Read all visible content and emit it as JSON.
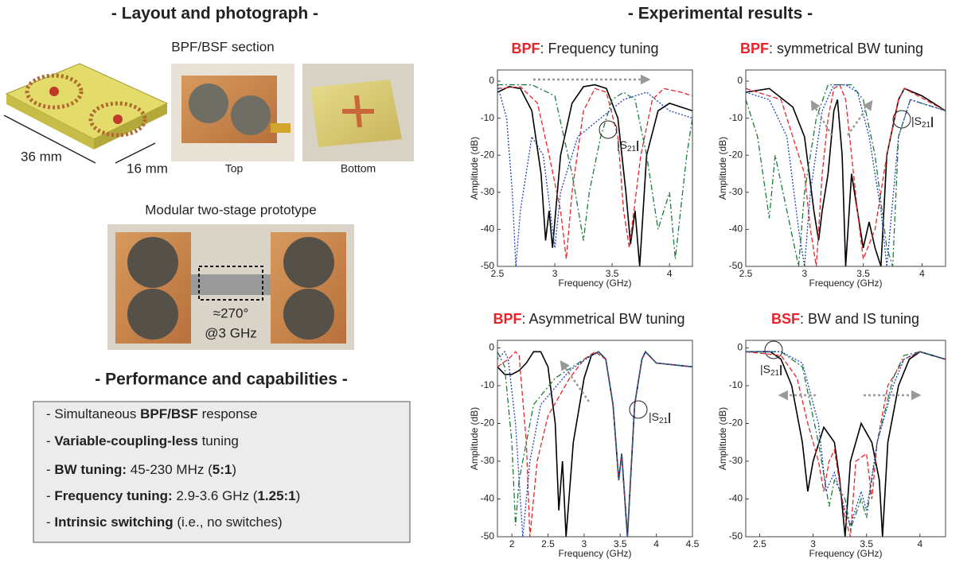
{
  "left": {
    "heading": "- Layout and photograph -",
    "section_label": "BPF/BSF section",
    "dim_length": "36 mm",
    "dim_width": "16 mm",
    "top_label": "Top",
    "bottom_label": "Bottom",
    "prototype_label": "Modular two-stage prototype",
    "phase_label": "≈270°",
    "freq_label": "@3 GHz"
  },
  "performance": {
    "heading": "- Performance and capabilities -",
    "items": [
      [
        {
          "t": "- Simultaneous ",
          "b": false
        },
        {
          "t": "BPF/BSF",
          "b": true
        },
        {
          "t": " response",
          "b": false
        }
      ],
      [
        {
          "t": "- ",
          "b": false
        },
        {
          "t": "Variable-coupling-less",
          "b": true
        },
        {
          "t": " tuning",
          "b": false
        }
      ],
      [
        {
          "t": "- ",
          "b": false
        },
        {
          "t": "BW tuning:",
          "b": true
        },
        {
          "t": " 45-230 MHz (",
          "b": false
        },
        {
          "t": "5:1",
          "b": true
        },
        {
          "t": ")",
          "b": false
        }
      ],
      [
        {
          "t": "- ",
          "b": false
        },
        {
          "t": "Frequency tuning:",
          "b": true
        },
        {
          "t": " 2.9-3.6 GHz (",
          "b": false
        },
        {
          "t": "1.25:1",
          "b": true
        },
        {
          "t": ")",
          "b": false
        }
      ],
      [
        {
          "t": "- ",
          "b": false
        },
        {
          "t": "Intrinsic switching",
          "b": true
        },
        {
          "t": " (i.e., no switches)",
          "b": false
        }
      ]
    ]
  },
  "results_heading": "- Experimental results -",
  "s21": {
    "pre": "|S",
    "sub": "21",
    "post": "|"
  },
  "chart_data": [
    {
      "type": "line",
      "title_tag": "BPF",
      "title": ": Frequency tuning",
      "tag_color": "#e8242a",
      "xlabel": "Frequency (GHz)",
      "ylabel": "Amplitude (dB)",
      "xlim": [
        2.5,
        4.2
      ],
      "ylim": [
        -50,
        3
      ],
      "xticks": [
        2.5,
        3,
        3.5,
        4
      ],
      "yticks": [
        0,
        -10,
        -20,
        -30,
        -40,
        -50
      ],
      "series": [
        {
          "color": "#000000",
          "dash": "solid",
          "x": [
            2.5,
            2.6,
            2.7,
            2.8,
            2.88,
            2.92,
            2.95,
            2.98,
            3.05,
            3.15,
            3.25,
            3.35,
            3.45,
            3.55,
            3.62,
            3.66,
            3.7,
            3.74,
            3.8,
            3.9,
            4.0,
            4.1,
            4.2
          ],
          "values": [
            -3,
            -1.5,
            -2,
            -8,
            -25,
            -43,
            -35,
            -45,
            -20,
            -6,
            -1.5,
            -1,
            -2,
            -10,
            -30,
            -44,
            -35,
            -50,
            -20,
            -8,
            -6,
            -7,
            -8
          ]
        },
        {
          "color": "#e8242a",
          "dash": "dashed",
          "x": [
            2.5,
            2.7,
            2.85,
            2.95,
            3.05,
            3.1,
            3.15,
            3.25,
            3.35,
            3.45,
            3.55,
            3.6,
            3.65,
            3.75,
            3.85,
            3.95,
            4.1,
            4.2
          ],
          "values": [
            -2,
            -1.5,
            -6,
            -20,
            -35,
            -48,
            -30,
            -8,
            -2,
            -3,
            -15,
            -35,
            -45,
            -20,
            -5,
            -2,
            -3,
            -4
          ]
        },
        {
          "color": "#1e7b3c",
          "dash": "dashdot",
          "x": [
            2.5,
            2.8,
            3.0,
            3.15,
            3.25,
            3.3,
            3.4,
            3.5,
            3.6,
            3.7,
            3.8,
            3.9,
            4.0,
            4.05,
            4.15,
            4.2
          ],
          "values": [
            -1,
            -1,
            -4,
            -25,
            -43,
            -30,
            -15,
            -5,
            -3,
            -5,
            -20,
            -40,
            -30,
            -48,
            -20,
            -10
          ]
        },
        {
          "color": "#2040c0",
          "dash": "dotted",
          "x": [
            2.5,
            2.58,
            2.63,
            2.66,
            2.7,
            2.8,
            2.9,
            3.0,
            3.05,
            3.2,
            3.4,
            3.6,
            3.8,
            4.0,
            4.2
          ],
          "values": [
            -1,
            -10,
            -30,
            -50,
            -35,
            -15,
            -20,
            -45,
            -30,
            -15,
            -10,
            -5,
            -3,
            -8,
            -10
          ]
        }
      ]
    },
    {
      "type": "line",
      "title_tag": "BPF",
      "title": ": symmetrical BW tuning",
      "tag_color": "#e8242a",
      "xlabel": "Frequency (GHz)",
      "ylabel": "Amplitude (dB)",
      "xlim": [
        2.5,
        4.2
      ],
      "ylim": [
        -50,
        3
      ],
      "xticks": [
        2.5,
        3,
        3.5,
        4
      ],
      "yticks": [
        0,
        -10,
        -20,
        -30,
        -40,
        -50
      ],
      "series": [
        {
          "color": "#000000",
          "dash": "solid",
          "x": [
            2.5,
            2.7,
            2.9,
            3.0,
            3.08,
            3.12,
            3.15,
            3.2,
            3.25,
            3.28,
            3.32,
            3.35,
            3.4,
            3.5,
            3.55,
            3.6,
            3.65,
            3.7,
            3.8,
            3.85,
            4.0,
            4.2
          ],
          "values": [
            -3,
            -2,
            -7,
            -15,
            -35,
            -43,
            -35,
            -25,
            -8,
            -5,
            -20,
            -50,
            -25,
            -45,
            -38,
            -45,
            -50,
            -20,
            -5,
            -2,
            -4,
            -8
          ]
        },
        {
          "color": "#e8242a",
          "dash": "dashed",
          "x": [
            2.5,
            2.8,
            3.0,
            3.05,
            3.1,
            3.15,
            3.2,
            3.25,
            3.3,
            3.35,
            3.45,
            3.5,
            3.6,
            3.7,
            3.8,
            3.85,
            4.2
          ],
          "values": [
            -2,
            -5,
            -25,
            -40,
            -50,
            -25,
            -10,
            -2,
            -1,
            -5,
            -35,
            -48,
            -40,
            -20,
            -5,
            -2,
            -8
          ]
        },
        {
          "color": "#1e7b3c",
          "dash": "dashdot",
          "x": [
            2.5,
            2.6,
            2.7,
            2.75,
            2.85,
            2.95,
            3.0,
            3.1,
            3.2,
            3.3,
            3.4,
            3.5,
            3.6,
            3.7,
            3.75,
            3.8,
            3.9,
            4.2
          ],
          "values": [
            -5,
            -15,
            -37,
            -20,
            -35,
            -50,
            -30,
            -10,
            -1,
            -1,
            -1,
            -5,
            -20,
            -45,
            -50,
            -15,
            -5,
            -8
          ]
        },
        {
          "color": "#2040c0",
          "dash": "dotted",
          "x": [
            2.5,
            2.7,
            2.85,
            2.95,
            3.0,
            3.05,
            3.15,
            3.25,
            3.35,
            3.45,
            3.55,
            3.65,
            3.7,
            3.8,
            3.9,
            4.2
          ],
          "values": [
            -3,
            -5,
            -15,
            -40,
            -50,
            -30,
            -8,
            -1,
            -1,
            -3,
            -15,
            -35,
            -50,
            -15,
            -5,
            -8
          ]
        }
      ]
    },
    {
      "type": "line",
      "title_tag": "BPF",
      "title": ": Asymmetrical BW tuning",
      "tag_color": "#e8242a",
      "xlabel": "Frequency (GHz)",
      "ylabel": "Amplitude (dB)",
      "xlim": [
        1.8,
        4.5
      ],
      "ylim": [
        -50,
        2
      ],
      "xticks": [
        2,
        2.5,
        3,
        3.5,
        4,
        4.5
      ],
      "yticks": [
        0,
        -10,
        -20,
        -30,
        -40,
        -50
      ],
      "series": [
        {
          "color": "#000000",
          "dash": "solid",
          "x": [
            1.8,
            1.9,
            2.0,
            2.1,
            2.2,
            2.3,
            2.4,
            2.5,
            2.6,
            2.65,
            2.7,
            2.75,
            2.85,
            3.0,
            3.1,
            3.2,
            3.3,
            3.4,
            3.48,
            3.52,
            3.6,
            3.7,
            3.8,
            3.85,
            4.0,
            4.5
          ],
          "values": [
            -5,
            -7,
            -7,
            -6,
            -4,
            -1,
            -1,
            -5,
            -20,
            -43,
            -30,
            -50,
            -25,
            -8,
            -2,
            -1,
            -3,
            -15,
            -35,
            -28,
            -50,
            -15,
            -3,
            -1,
            -4,
            -5
          ]
        },
        {
          "color": "#e8242a",
          "dash": "dashed",
          "x": [
            1.8,
            1.95,
            2.05,
            2.1,
            2.2,
            2.25,
            2.35,
            2.5,
            2.8,
            3.0,
            3.15,
            3.3,
            3.4,
            3.48,
            3.52,
            3.6,
            3.7,
            3.8,
            3.85,
            4.0,
            4.5
          ],
          "values": [
            -5,
            -3,
            -1,
            -2,
            -25,
            -50,
            -30,
            -18,
            -8,
            -3,
            -1,
            -3,
            -15,
            -35,
            -28,
            -50,
            -15,
            -3,
            -1,
            -4,
            -5
          ]
        },
        {
          "color": "#1e7b3c",
          "dash": "dashdot",
          "x": [
            1.8,
            1.9,
            2.0,
            2.05,
            2.1,
            2.3,
            2.6,
            3.0,
            3.2,
            3.3,
            3.4,
            3.48,
            3.52,
            3.6,
            3.7,
            3.8,
            3.85,
            4.0,
            4.5
          ],
          "values": [
            -1,
            -5,
            -25,
            -47,
            -35,
            -15,
            -8,
            -3,
            -1,
            -3,
            -15,
            -35,
            -28,
            -50,
            -15,
            -3,
            -1,
            -4,
            -5
          ]
        },
        {
          "color": "#2040c0",
          "dash": "dotted",
          "x": [
            1.8,
            1.9,
            1.95,
            2.05,
            2.15,
            2.25,
            2.4,
            2.8,
            3.1,
            3.2,
            3.3,
            3.4,
            3.48,
            3.52,
            3.6,
            3.7,
            3.8,
            3.85,
            4.0,
            4.5
          ],
          "values": [
            -3,
            -1,
            -3,
            -20,
            -50,
            -30,
            -15,
            -6,
            -2,
            -1,
            -3,
            -15,
            -35,
            -28,
            -50,
            -15,
            -3,
            -1,
            -4,
            -5
          ]
        }
      ]
    },
    {
      "type": "line",
      "title_tag": "BSF",
      "title": ": BW and IS tuning",
      "tag_color": "#e8242a",
      "xlabel": "Frequency (GHz)",
      "ylabel": "Amplitude (dB)",
      "xlim": [
        2.37,
        4.24
      ],
      "ylim": [
        -50,
        2
      ],
      "xticks": [
        2.5,
        3,
        3.5,
        4
      ],
      "yticks": [
        0,
        -10,
        -20,
        -30,
        -40,
        -50
      ],
      "series": [
        {
          "color": "#000000",
          "dash": "solid",
          "x": [
            2.37,
            2.6,
            2.7,
            2.8,
            2.9,
            2.95,
            3.0,
            3.1,
            3.2,
            3.25,
            3.3,
            3.35,
            3.45,
            3.55,
            3.62,
            3.65,
            3.7,
            3.8,
            3.9,
            4.0,
            4.24
          ],
          "values": [
            -1,
            -1,
            -3,
            -10,
            -25,
            -38,
            -30,
            -21,
            -25,
            -35,
            -50,
            -30,
            -20,
            -25,
            -35,
            -50,
            -25,
            -10,
            -3,
            -1,
            -3
          ]
        },
        {
          "color": "#e8242a",
          "dash": "dashed",
          "x": [
            2.37,
            2.7,
            2.85,
            2.95,
            3.05,
            3.1,
            3.15,
            3.2,
            3.3,
            3.35,
            3.4,
            3.5,
            3.55,
            3.6,
            3.7,
            3.85,
            4.0,
            4.24
          ],
          "values": [
            -1,
            -2,
            -8,
            -20,
            -30,
            -38,
            -30,
            -27,
            -45,
            -50,
            -30,
            -28,
            -40,
            -25,
            -10,
            -3,
            -1,
            -3
          ]
        },
        {
          "color": "#1e7b3c",
          "dash": "dashdot",
          "x": [
            2.37,
            2.7,
            2.9,
            3.05,
            3.15,
            3.2,
            3.3,
            3.35,
            3.45,
            3.5,
            3.6,
            3.75,
            3.85,
            4.0,
            4.24
          ],
          "values": [
            -1,
            -1,
            -5,
            -25,
            -42,
            -35,
            -40,
            -48,
            -40,
            -45,
            -25,
            -8,
            -2,
            -1,
            -3
          ]
        },
        {
          "color": "#2040c0",
          "dash": "dotted",
          "x": [
            2.37,
            2.7,
            2.9,
            3.05,
            3.12,
            3.2,
            3.3,
            3.35,
            3.45,
            3.5,
            3.6,
            3.75,
            3.85,
            4.0,
            4.24
          ],
          "values": [
            -1,
            -1,
            -4,
            -20,
            -38,
            -33,
            -43,
            -47,
            -38,
            -43,
            -25,
            -10,
            -3,
            -1,
            -3
          ]
        }
      ]
    }
  ]
}
